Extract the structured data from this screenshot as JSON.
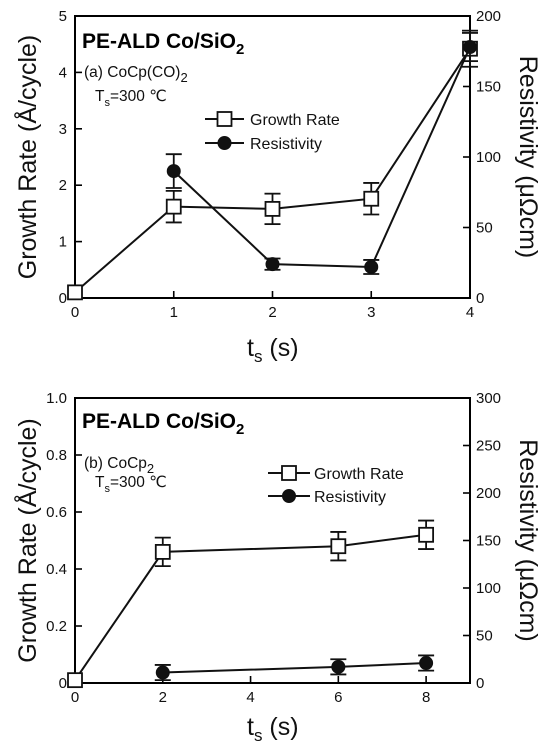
{
  "chart_data": [
    {
      "type": "line",
      "title": "PE-ALD Co/SiO",
      "title_sub": "2",
      "annotation_line1": "(a) CoCp(CO)",
      "annotation_line1_sub": "2",
      "annotation_line2_main": "T",
      "annotation_line2_sub": "s",
      "annotation_line2_rest": "=300 ℃",
      "xlabel_main": "t",
      "xlabel_sub": "s",
      "xlabel_rest": " (s)",
      "ylabel_left": "Growth Rate (Å/cycle)",
      "ylabel_right": "Resistivity (μΩcm)",
      "xlim": [
        0,
        4
      ],
      "ylim_left": [
        0,
        5
      ],
      "ylim_right": [
        0,
        200
      ],
      "x_ticks": [
        "0",
        "1",
        "2",
        "3",
        "4"
      ],
      "y_left_ticks": [
        "0",
        "1",
        "2",
        "3",
        "4",
        "5"
      ],
      "y_right_ticks": [
        "0",
        "50",
        "100",
        "150",
        "200"
      ],
      "legend_position": "center",
      "series": [
        {
          "name": "Growth Rate",
          "axis": "left",
          "marker": "open-square",
          "x": [
            0,
            1,
            2,
            3,
            4
          ],
          "y": [
            0.1,
            1.62,
            1.58,
            1.76,
            4.42
          ],
          "err": [
            0,
            0.28,
            0.27,
            0.28,
            0.32
          ]
        },
        {
          "name": "Resistivity",
          "axis": "right",
          "marker": "filled-circle",
          "x": [
            1,
            2,
            3,
            4
          ],
          "y": [
            90,
            24,
            22,
            178
          ],
          "err": [
            12,
            4,
            5,
            10
          ]
        }
      ]
    },
    {
      "type": "line",
      "title": "PE-ALD Co/SiO",
      "title_sub": "2",
      "annotation_line1": "(b) CoCp",
      "annotation_line1_sub": "2",
      "annotation_line2_main": "T",
      "annotation_line2_sub": "s",
      "annotation_line2_rest": "=300 ℃",
      "xlabel_main": "t",
      "xlabel_sub": "s",
      "xlabel_rest": " (s)",
      "ylabel_left": "Growth Rate (Å/cycle)",
      "ylabel_right": "Resistivity (μΩcm)",
      "xlim": [
        0,
        9
      ],
      "ylim_left": [
        0,
        1.0
      ],
      "ylim_right": [
        0,
        300
      ],
      "x_ticks": [
        "0",
        "2",
        "4",
        "6",
        "8"
      ],
      "y_left_ticks": [
        "0",
        "0.2",
        "0.4",
        "0.6",
        "0.8",
        "1.0"
      ],
      "y_right_ticks": [
        "0",
        "50",
        "100",
        "150",
        "200",
        "250",
        "300"
      ],
      "legend_position": "upper-right",
      "series": [
        {
          "name": "Growth Rate",
          "axis": "left",
          "marker": "open-square",
          "x": [
            0,
            2,
            6,
            8
          ],
          "y": [
            0.01,
            0.46,
            0.48,
            0.52
          ],
          "err": [
            0,
            0.05,
            0.05,
            0.05
          ]
        },
        {
          "name": "Resistivity",
          "axis": "right",
          "marker": "filled-circle",
          "x": [
            2,
            6,
            8
          ],
          "y": [
            11,
            17,
            21
          ],
          "err": [
            8,
            8,
            8
          ]
        }
      ]
    }
  ]
}
